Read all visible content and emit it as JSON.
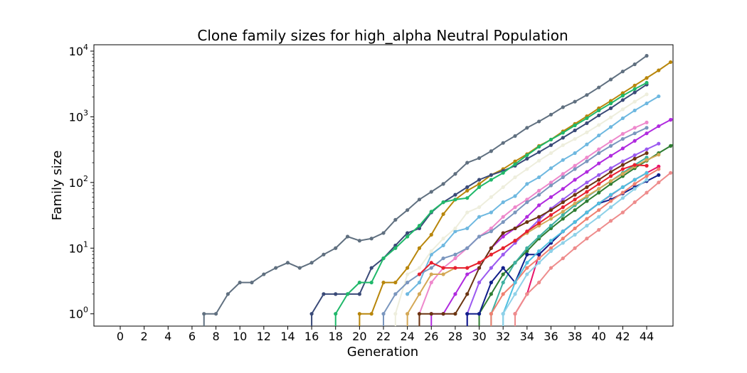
{
  "chart_data": {
    "type": "line",
    "title": "Clone family sizes for high_alpha Neutral Population",
    "xlabel": "Generation",
    "ylabel": "Family size",
    "xlim": [
      -2.2,
      46.2
    ],
    "ylim": [
      0.65,
      12500
    ],
    "yscale": "log",
    "xticks": [
      0,
      2,
      4,
      6,
      8,
      10,
      12,
      14,
      16,
      18,
      20,
      22,
      24,
      26,
      28,
      30,
      32,
      34,
      36,
      38,
      40,
      42,
      44
    ],
    "yticks": [
      {
        "value": 1,
        "base": "10",
        "exp": "0"
      },
      {
        "value": 10,
        "base": "10",
        "exp": "1"
      },
      {
        "value": 100,
        "base": "10",
        "exp": "2"
      },
      {
        "value": 1000,
        "base": "10",
        "exp": "3"
      },
      {
        "value": 10000,
        "base": "10",
        "exp": "4"
      }
    ],
    "grid": false,
    "legend": "none",
    "series": [
      {
        "color": "#607080",
        "start": 7,
        "values": [
          1,
          1,
          2,
          3,
          3,
          4,
          5,
          6,
          5,
          6,
          8,
          10,
          15,
          13,
          14,
          17,
          27,
          38,
          55,
          72,
          95,
          135,
          200,
          235,
          300,
          400,
          510,
          680,
          850,
          1080,
          1400,
          1700,
          2150,
          2800,
          3700,
          4900,
          6300,
          8500
        ]
      },
      {
        "color": "#B8860B",
        "start": 20,
        "values": [
          1,
          1,
          3,
          3,
          5,
          10,
          16,
          33,
          55,
          75,
          95,
          130,
          160,
          210,
          270,
          360,
          450,
          600,
          780,
          1020,
          1350,
          1750,
          2300,
          3000,
          3900,
          5100,
          6800
        ]
      },
      {
        "color": "#3A4A78",
        "start": 16,
        "values": [
          1,
          2,
          2,
          2,
          2,
          5,
          7,
          11,
          17,
          20,
          35,
          50,
          65,
          85,
          110,
          130,
          150,
          180,
          230,
          290,
          370,
          480,
          620,
          800,
          1050,
          1350,
          1800,
          2350,
          3100
        ]
      },
      {
        "color": "#20B86A",
        "start": 18,
        "values": [
          1,
          2,
          3,
          3,
          7,
          10,
          15,
          22,
          36,
          50,
          55,
          58,
          85,
          110,
          140,
          190,
          260,
          350,
          450,
          570,
          740,
          950,
          1250,
          1600,
          2100,
          2650,
          3300
        ]
      },
      {
        "color": "#6EB8E0",
        "start": 24,
        "values": [
          2,
          3,
          8,
          11,
          18,
          20,
          30,
          35,
          50,
          62,
          95,
          120,
          165,
          220,
          280,
          380,
          520,
          700,
          950,
          1250,
          1600,
          2050
        ]
      },
      {
        "color": "#EEEEDD",
        "start": 23,
        "values": [
          1,
          4,
          5,
          9,
          14,
          20,
          35,
          42,
          60,
          85,
          120,
          160,
          215,
          280,
          370,
          460,
          580,
          750,
          980,
          1300,
          1700,
          2200
        ]
      },
      {
        "color": "#B02ADF",
        "start": 26,
        "values": [
          1,
          1,
          2,
          4,
          5,
          10,
          15,
          20,
          30,
          45,
          60,
          80,
          110,
          145,
          195,
          255,
          330,
          430,
          560,
          720,
          900,
          1150
        ]
      },
      {
        "color": "#EE88CC",
        "start": 25,
        "values": [
          1,
          3,
          5,
          7,
          10,
          15,
          20,
          30,
          42,
          55,
          75,
          100,
          135,
          180,
          240,
          320,
          420,
          550,
          680,
          820
        ]
      },
      {
        "color": "#7A96BE",
        "start": 22,
        "values": [
          1,
          2,
          3,
          4,
          5,
          7,
          8,
          10,
          15,
          18,
          25,
          35,
          50,
          65,
          90,
          120,
          160,
          210,
          280,
          360,
          460,
          560,
          680
        ]
      },
      {
        "color": "#2E7D32",
        "start": 30,
        "values": [
          1,
          2,
          4,
          6,
          9,
          14,
          20,
          28,
          38,
          52,
          70,
          95,
          125,
          165,
          215,
          280,
          360,
          460,
          560
        ]
      },
      {
        "color": "#9B59F0",
        "start": 29,
        "values": [
          1,
          3,
          5,
          8,
          12,
          18,
          27,
          40,
          55,
          75,
          100,
          130,
          165,
          210,
          260,
          320,
          390
        ]
      },
      {
        "color": "#6B3410",
        "start": 25,
        "values": [
          1,
          1,
          1,
          1,
          2,
          5,
          10,
          17,
          20,
          25,
          30,
          38,
          50,
          65,
          85,
          110,
          145,
          185,
          230,
          280
        ]
      },
      {
        "color": "#3FB0A0",
        "start": 31,
        "values": [
          1,
          3,
          6,
          10,
          15,
          22,
          32,
          45,
          60,
          80,
          105,
          140,
          185,
          240
        ]
      },
      {
        "color": "#D4A856",
        "start": 24,
        "values": [
          1,
          2,
          4,
          4,
          5,
          5,
          6,
          8,
          10,
          13,
          17,
          22,
          28,
          36,
          48,
          62,
          80,
          105,
          135,
          175,
          220,
          265
        ]
      },
      {
        "color": "#E82030",
        "start": 25,
        "values": [
          4,
          6,
          5,
          5,
          5,
          6,
          8,
          10,
          13,
          18,
          24,
          32,
          42,
          55,
          72,
          95,
          125,
          160,
          185,
          180
        ]
      },
      {
        "color": "#E8156A",
        "start": 33,
        "values": [
          1,
          2,
          8,
          12,
          18,
          25,
          35,
          48,
          64,
          85,
          110,
          140,
          175
        ]
      },
      {
        "color": "#101E8A",
        "start": 29,
        "values": [
          1,
          1,
          3,
          5,
          3,
          8,
          8,
          12,
          18,
          25,
          35,
          48,
          55,
          68,
          85,
          105,
          130
        ]
      },
      {
        "color": "#F08070",
        "start": 31,
        "values": [
          1,
          2,
          3,
          5,
          7,
          10,
          14,
          20,
          28,
          38,
          52,
          70,
          95,
          125,
          160
        ]
      },
      {
        "color": "#50C0E0",
        "start": 32,
        "values": [
          1,
          3,
          6,
          9,
          13,
          18,
          25,
          35,
          48,
          65,
          85,
          110,
          140
        ]
      },
      {
        "color": "#EE8C8C",
        "start": 33,
        "values": [
          1,
          2,
          3,
          5,
          7,
          10,
          14,
          19,
          26,
          35,
          50,
          70,
          100,
          140
        ]
      },
      {
        "color": "#8FD1E8",
        "start": 32,
        "values": [
          1,
          2,
          4,
          6,
          9,
          12,
          16,
          22,
          30,
          42,
          58,
          80,
          110
        ]
      }
    ]
  }
}
